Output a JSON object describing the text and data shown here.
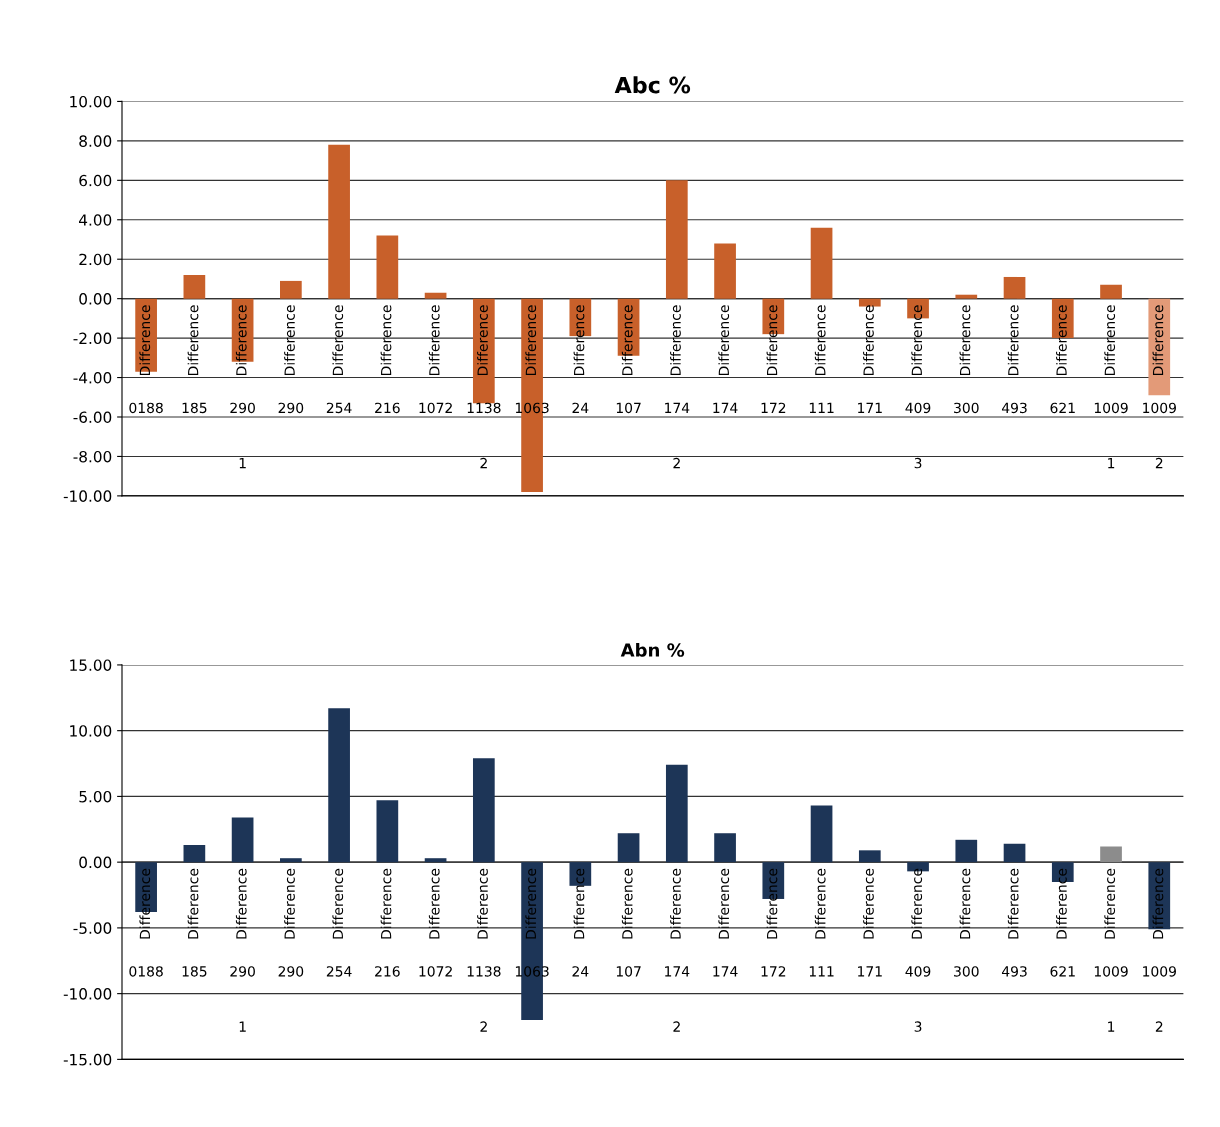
{
  "chart_data": [
    {
      "type": "bar",
      "title": "Abc %",
      "categories": [
        "Difference\n0188",
        "Difference\n185",
        "Difference\n290\n1",
        "Difference\n290",
        "Difference\n254",
        "Difference\n216",
        "Difference\n1072",
        "Difference\n1138\n2",
        "Difference\n1063",
        "Difference\n24",
        "Difference\n107",
        "Difference\n174\n2",
        "Difference\n174",
        "Difference\n172",
        "Difference\n111",
        "Difference\n171",
        "Difference\n409\n3",
        "Difference\n300",
        "Difference\n493",
        "Difference\n621",
        "Difference\n1009\n1",
        "Difference\n1009\n2"
      ],
      "values": [
        -3.7,
        1.2,
        -3.2,
        0.9,
        7.8,
        3.2,
        0.3,
        -5.3,
        -9.8,
        -1.9,
        -2.9,
        6.0,
        2.8,
        -1.8,
        3.6,
        -0.4,
        -1.0,
        0.2,
        1.1,
        -2.0,
        0.7,
        -4.9
      ],
      "colors": [
        "#c8602a",
        "#c8602a",
        "#c8602a",
        "#c8602a",
        "#c8602a",
        "#c8602a",
        "#c8602a",
        "#c8602a",
        "#c8602a",
        "#c8602a",
        "#c8602a",
        "#c8602a",
        "#c8602a",
        "#c8602a",
        "#c8602a",
        "#c8602a",
        "#c8602a",
        "#c8602a",
        "#c8602a",
        "#c8602a",
        "#c8602a",
        "#e39a78"
      ],
      "ylim": [
        -10,
        10
      ],
      "yticks": [
        {
          "value": -10,
          "label": "-10.00"
        },
        {
          "value": -8,
          "label": "-8.00"
        },
        {
          "value": -6,
          "label": "-6.00"
        },
        {
          "value": -4,
          "label": "-4.00"
        },
        {
          "value": -2,
          "label": "-2.00"
        },
        {
          "value": 0,
          "label": "0.00"
        },
        {
          "value": 2,
          "label": "2.00"
        },
        {
          "value": 4,
          "label": "4.00"
        },
        {
          "value": 6,
          "label": "6.00"
        },
        {
          "value": 8,
          "label": "8.00"
        },
        {
          "value": 10,
          "label": "10.00"
        }
      ],
      "grid": "y"
    },
    {
      "type": "bar",
      "title": "Abn %",
      "categories": [
        "Difference\n0188",
        "Difference\n185",
        "Difference\n290\n1",
        "Difference\n290",
        "Difference\n254",
        "Difference\n216",
        "Difference\n1072",
        "Difference\n1138\n2",
        "Difference\n1063",
        "Difference\n24",
        "Difference\n107",
        "Difference\n174\n2",
        "Difference\n174",
        "Difference\n172",
        "Difference\n111",
        "Difference\n171",
        "Difference\n409\n3",
        "Difference\n300",
        "Difference\n493",
        "Difference\n621",
        "Difference\n1009\n1",
        "Difference\n1009\n2"
      ],
      "values": [
        -3.8,
        1.3,
        3.4,
        0.3,
        11.7,
        4.7,
        0.3,
        7.9,
        -12.0,
        -1.8,
        2.2,
        7.4,
        2.2,
        -2.8,
        4.3,
        0.9,
        -0.7,
        1.7,
        1.4,
        -1.5,
        1.2,
        -5.1
      ],
      "colors": [
        "#1d3557",
        "#1d3557",
        "#1d3557",
        "#1d3557",
        "#1d3557",
        "#1d3557",
        "#1d3557",
        "#1d3557",
        "#1d3557",
        "#1d3557",
        "#1d3557",
        "#1d3557",
        "#1d3557",
        "#1d3557",
        "#1d3557",
        "#1d3557",
        "#1d3557",
        "#1d3557",
        "#1d3557",
        "#1d3557",
        "#8c8c8c",
        "#1d3557"
      ],
      "ylim": [
        -15,
        15
      ],
      "yticks": [
        {
          "value": -15,
          "label": "-15.00"
        },
        {
          "value": -10,
          "label": "-10.00"
        },
        {
          "value": -5,
          "label": "-5.00"
        },
        {
          "value": 0,
          "label": "0.00"
        },
        {
          "value": 5,
          "label": "5.00"
        },
        {
          "value": 10,
          "label": "10.00"
        },
        {
          "value": 15,
          "label": "15.00"
        }
      ],
      "grid": "y"
    }
  ]
}
